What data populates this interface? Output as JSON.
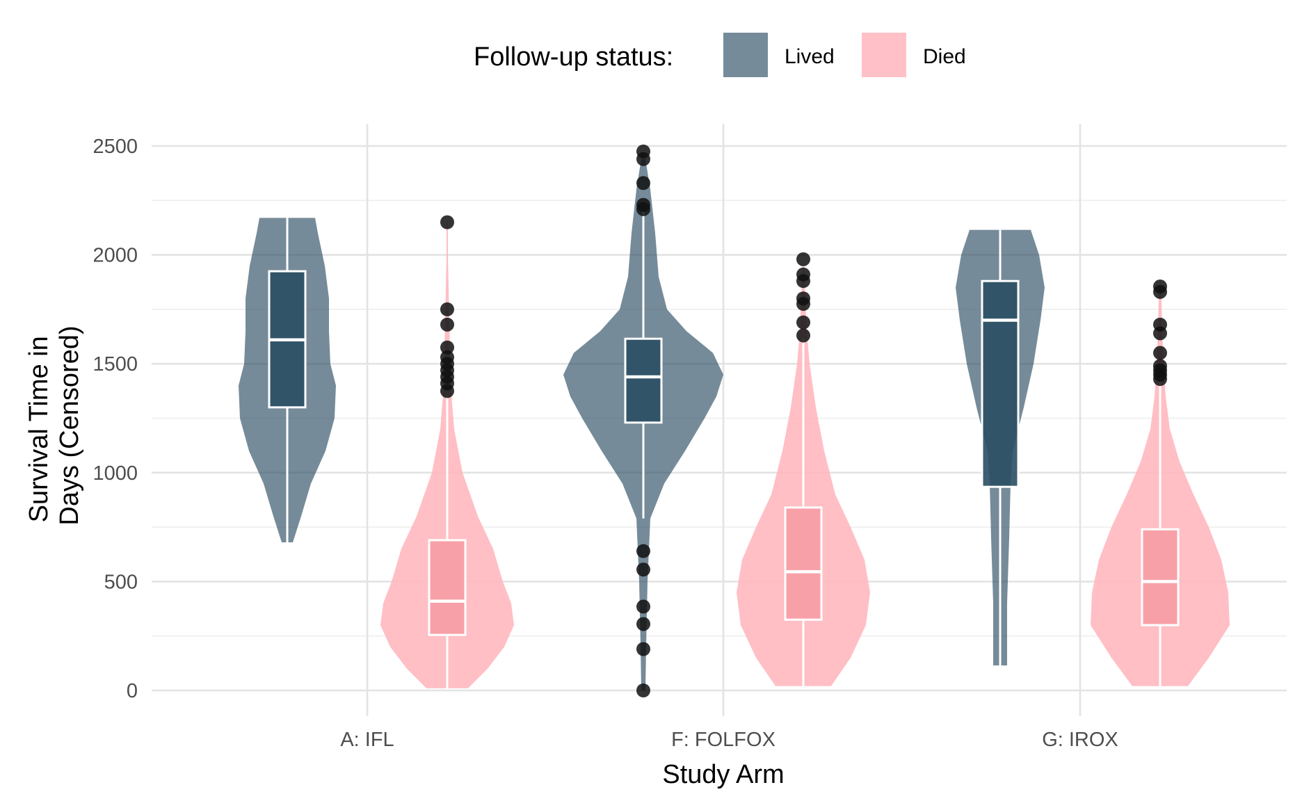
{
  "chart_data": {
    "type": "violin",
    "title": "",
    "xlabel": "Study Arm",
    "ylabel_lines": [
      "Survival Time in",
      "Days (Censored)"
    ],
    "ylim": [
      0,
      2500
    ],
    "yticks": [
      0,
      500,
      1000,
      1500,
      2000,
      2500
    ],
    "ytick_labels": [
      "0",
      "500",
      "1000",
      "1500",
      "2000",
      "2500"
    ],
    "categories": [
      "A: IFL",
      "F: FOLFOX",
      "G: IROX"
    ],
    "grid": true,
    "legend": {
      "position": "top",
      "title": "Follow-up status:",
      "entries": [
        {
          "label": "Lived",
          "color": "#2c4d63"
        },
        {
          "label": "Died",
          "color": "#ffb6bd"
        }
      ]
    },
    "series": [
      {
        "name": "Lived",
        "violin_color": "#2c4d63",
        "box_color": "#2a4e63",
        "groups": [
          {
            "category": "A: IFL",
            "box": {
              "min": 680,
              "q1": 1300,
              "median": 1610,
              "q3": 1925,
              "max": 2170
            },
            "density": [
              [
                680,
                8
              ],
              [
                800,
                20
              ],
              [
                950,
                34
              ],
              [
                1100,
                55
              ],
              [
                1250,
                68
              ],
              [
                1400,
                70
              ],
              [
                1500,
                62
              ],
              [
                1650,
                60
              ],
              [
                1800,
                60
              ],
              [
                1950,
                54
              ],
              [
                2100,
                44
              ],
              [
                2170,
                40
              ]
            ],
            "outliers": []
          },
          {
            "category": "F: FOLFOX",
            "box": {
              "min": 790,
              "q1": 1230,
              "median": 1440,
              "q3": 1615,
              "max": 2200
            },
            "density": [
              [
                0,
                3
              ],
              [
                200,
                4
              ],
              [
                500,
                6
              ],
              [
                790,
                10
              ],
              [
                950,
                30
              ],
              [
                1100,
                60
              ],
              [
                1250,
                88
              ],
              [
                1350,
                105
              ],
              [
                1450,
                115
              ],
              [
                1550,
                100
              ],
              [
                1650,
                62
              ],
              [
                1750,
                34
              ],
              [
                1900,
                22
              ],
              [
                2100,
                17
              ],
              [
                2300,
                10
              ],
              [
                2440,
                3
              ]
            ],
            "outliers": [
              0,
              190,
              305,
              385,
              555,
              640,
              2210,
              2230,
              2330,
              2440,
              2475
            ]
          },
          {
            "category": "G: IROX",
            "box": {
              "min": 115,
              "q1": 935,
              "median": 1700,
              "q3": 1880,
              "max": 2115
            },
            "density": [
              [
                115,
                10
              ],
              [
                400,
                10
              ],
              [
                700,
                13
              ],
              [
                950,
                15
              ],
              [
                1100,
                18
              ],
              [
                1300,
                34
              ],
              [
                1500,
                48
              ],
              [
                1700,
                58
              ],
              [
                1850,
                64
              ],
              [
                2000,
                56
              ],
              [
                2115,
                44
              ]
            ],
            "outliers": []
          }
        ]
      },
      {
        "name": "Died",
        "violin_color": "#ffb6bd",
        "box_color": "#f8a0a8",
        "groups": [
          {
            "category": "A: IFL",
            "box": {
              "min": 10,
              "q1": 255,
              "median": 410,
              "q3": 690,
              "max": 1360
            },
            "density": [
              [
                10,
                30
              ],
              [
                100,
                58
              ],
              [
                200,
                82
              ],
              [
                300,
                96
              ],
              [
                400,
                92
              ],
              [
                500,
                80
              ],
              [
                650,
                66
              ],
              [
                800,
                44
              ],
              [
                1000,
                22
              ],
              [
                1200,
                10
              ],
              [
                1400,
                5
              ],
              [
                1700,
                3
              ],
              [
                2000,
                1
              ],
              [
                2150,
                1
              ]
            ],
            "outliers": [
              1375,
              1410,
              1440,
              1470,
              1500,
              1530,
              1575,
              1680,
              1750,
              2150
            ]
          },
          {
            "category": "F: FOLFOX",
            "box": {
              "min": 20,
              "q1": 325,
              "median": 545,
              "q3": 840,
              "max": 1620
            },
            "density": [
              [
                20,
                40
              ],
              [
                150,
                68
              ],
              [
                300,
                90
              ],
              [
                450,
                96
              ],
              [
                600,
                88
              ],
              [
                750,
                68
              ],
              [
                900,
                46
              ],
              [
                1100,
                30
              ],
              [
                1300,
                18
              ],
              [
                1500,
                9
              ],
              [
                1650,
                5
              ],
              [
                1800,
                3
              ],
              [
                1950,
                1
              ]
            ],
            "outliers": [
              1630,
              1690,
              1775,
              1800,
              1880,
              1910,
              1980
            ]
          },
          {
            "category": "G: IROX",
            "box": {
              "min": 20,
              "q1": 300,
              "median": 500,
              "q3": 740,
              "max": 1420
            },
            "density": [
              [
                20,
                40
              ],
              [
                150,
                70
              ],
              [
                300,
                100
              ],
              [
                450,
                98
              ],
              [
                600,
                88
              ],
              [
                750,
                70
              ],
              [
                900,
                48
              ],
              [
                1050,
                28
              ],
              [
                1200,
                14
              ],
              [
                1350,
                8
              ],
              [
                1500,
                5
              ],
              [
                1650,
                3
              ],
              [
                1800,
                2
              ],
              [
                1850,
                1
              ]
            ],
            "outliers": [
              1430,
              1450,
              1470,
              1490,
              1550,
              1640,
              1680,
              1830,
              1855
            ]
          }
        ]
      }
    ]
  }
}
